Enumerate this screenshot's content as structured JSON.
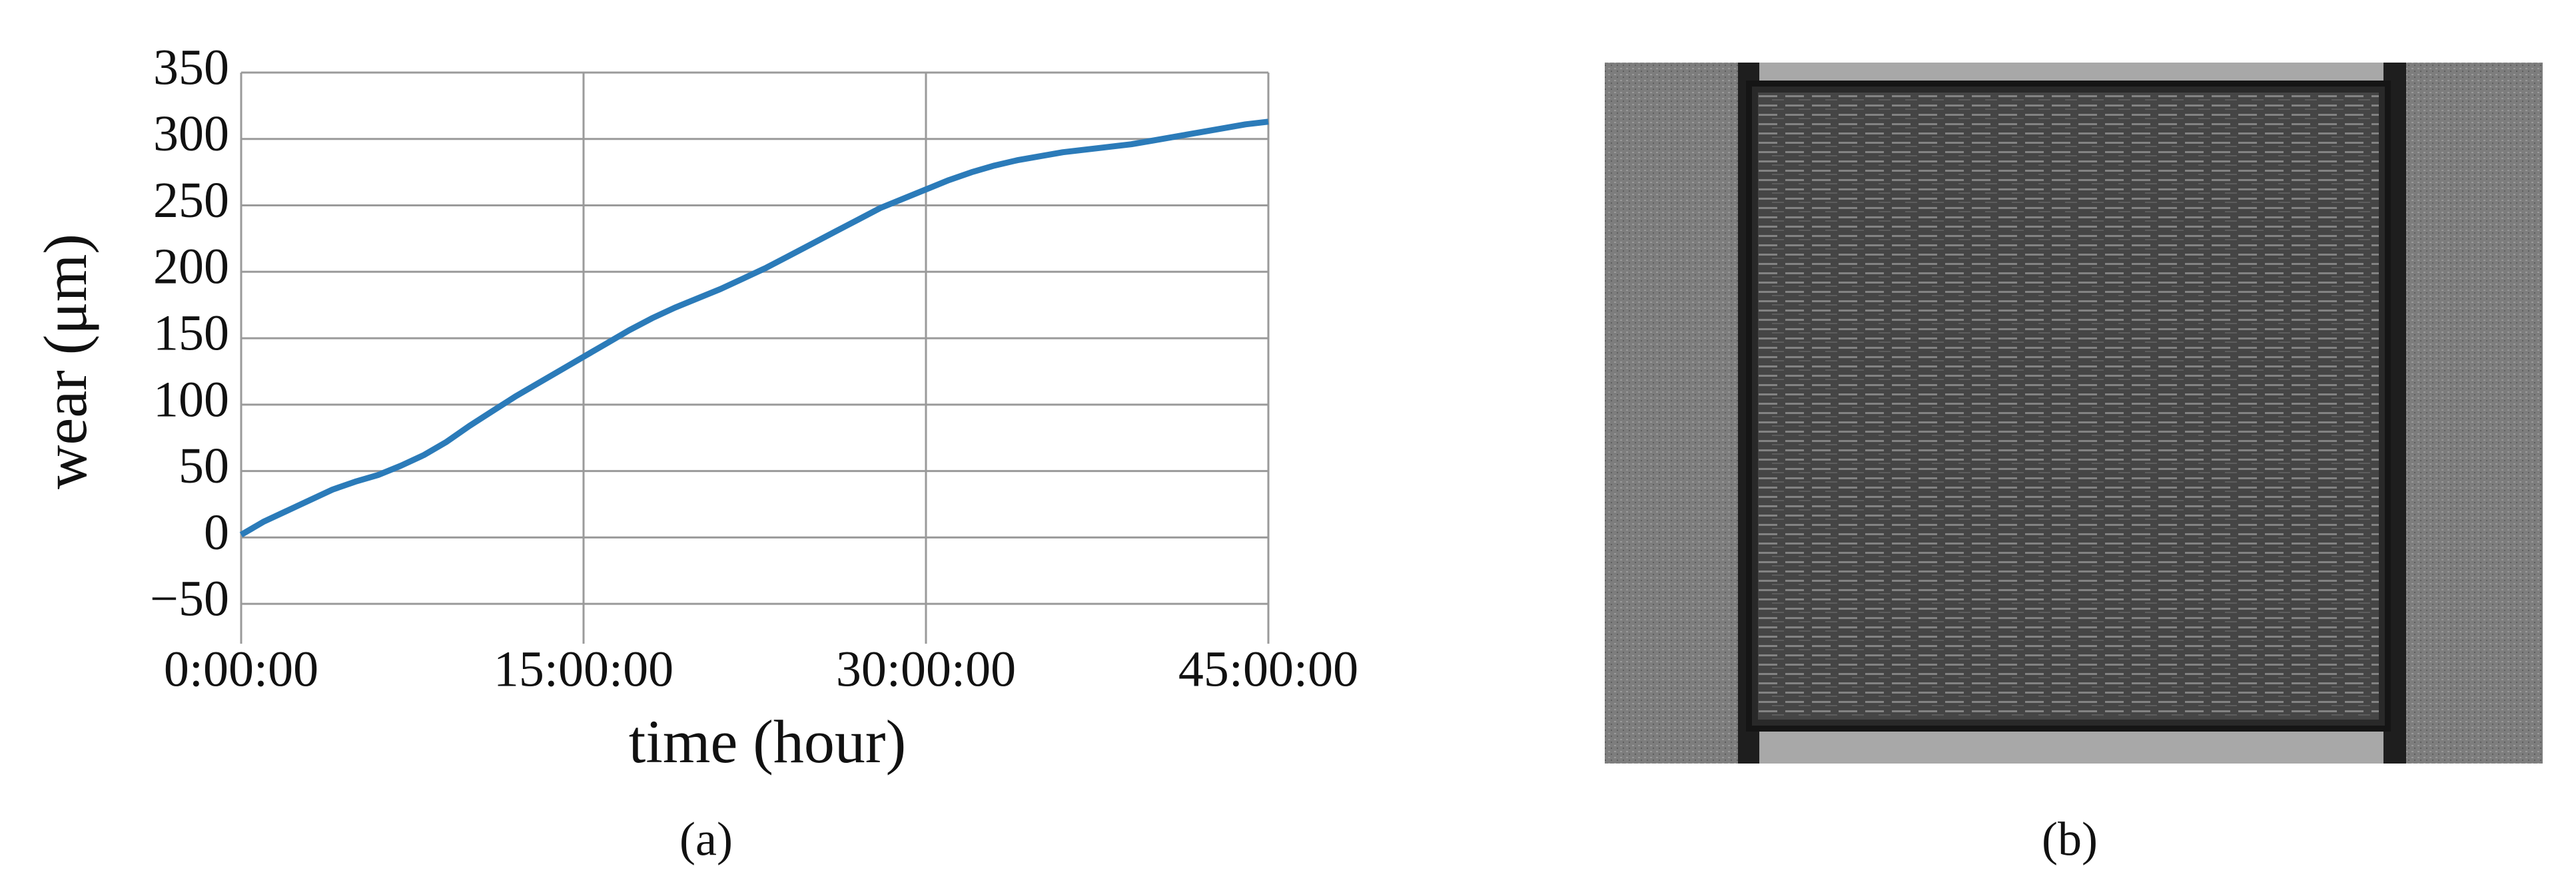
{
  "chart_data": {
    "type": "line",
    "x": [
      0,
      1,
      2,
      3,
      4,
      5,
      6,
      7,
      8,
      9,
      10,
      11,
      12,
      13,
      14,
      15,
      16,
      17,
      18,
      19,
      20,
      21,
      22,
      23,
      24,
      25,
      26,
      27,
      28,
      29,
      30,
      31,
      32,
      33,
      34,
      35,
      36,
      37,
      38,
      39,
      40,
      41,
      42,
      43,
      44,
      45
    ],
    "values": [
      2,
      12,
      20,
      28,
      36,
      42,
      47,
      54,
      62,
      72,
      84,
      95,
      106,
      116,
      126,
      136,
      146,
      156,
      165,
      173,
      180,
      187,
      195,
      203,
      212,
      221,
      230,
      239,
      248,
      255,
      262,
      269,
      275,
      280,
      284,
      287,
      290,
      292,
      294,
      296,
      299,
      302,
      305,
      308,
      311,
      313
    ],
    "color": "#2b7bb9",
    "xlim": [
      0,
      45
    ],
    "xticks": [
      {
        "value": 0,
        "label": "0:00:00"
      },
      {
        "value": 15,
        "label": "15:00:00"
      },
      {
        "value": 30,
        "label": "30:00:00"
      },
      {
        "value": 45,
        "label": "45:00:00"
      }
    ],
    "ylim": [
      -80,
      350
    ],
    "yticks": [
      {
        "value": -50,
        "label": "−50"
      },
      0,
      50,
      100,
      150,
      200,
      250,
      300,
      350
    ],
    "grid": true,
    "xlabel": "time (hour)",
    "ylabel": "wear (μm)"
  },
  "captions": [
    "(a)",
    "(b)"
  ]
}
